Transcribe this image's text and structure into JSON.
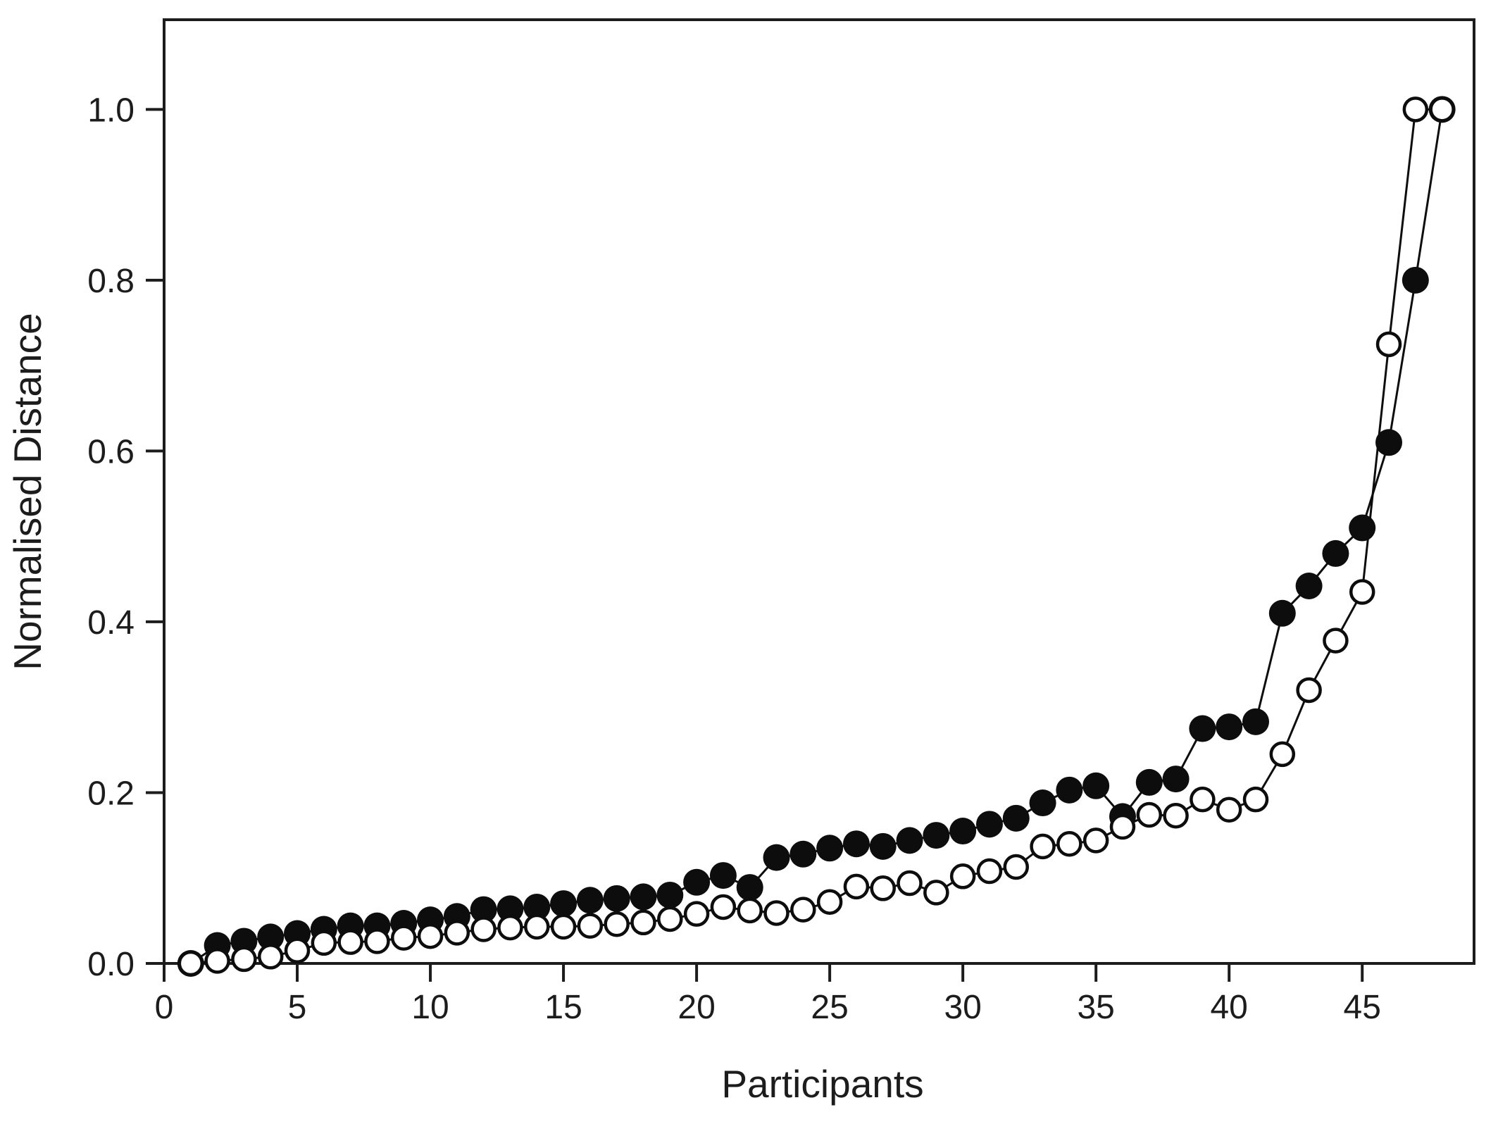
{
  "figure": {
    "background_color": "#ffffff",
    "ink_color": "#1c1c1c"
  },
  "chart_data": {
    "type": "line",
    "title": "",
    "xlabel": "Participants",
    "ylabel": "Normalised Distance",
    "grid": false,
    "legend": "none",
    "frame": true,
    "xlim": [
      0,
      49.2
    ],
    "ylim": [
      0,
      1.105
    ],
    "x_ticks": [
      0,
      5,
      10,
      15,
      20,
      25,
      30,
      35,
      40,
      45
    ],
    "y_ticks": [
      "0.0",
      "0.2",
      "0.4",
      "0.6",
      "0.8",
      "1.0"
    ],
    "x": [
      1,
      2,
      3,
      4,
      5,
      6,
      7,
      8,
      9,
      10,
      11,
      12,
      13,
      14,
      15,
      16,
      17,
      18,
      19,
      20,
      21,
      22,
      23,
      24,
      25,
      26,
      27,
      28,
      29,
      30,
      31,
      32,
      33,
      34,
      35,
      36,
      37,
      38,
      39,
      40,
      41,
      42,
      43,
      44,
      45,
      46,
      47,
      48
    ],
    "series": [
      {
        "name": "filled-circles",
        "marker": "filled-circle",
        "line_style": "solid",
        "color": "#0d0d0d",
        "values": [
          0.0,
          0.021,
          0.026,
          0.031,
          0.035,
          0.04,
          0.044,
          0.044,
          0.047,
          0.051,
          0.055,
          0.063,
          0.064,
          0.066,
          0.07,
          0.074,
          0.076,
          0.078,
          0.08,
          0.095,
          0.103,
          0.089,
          0.124,
          0.128,
          0.135,
          0.14,
          0.137,
          0.144,
          0.15,
          0.155,
          0.163,
          0.17,
          0.188,
          0.203,
          0.208,
          0.172,
          0.212,
          0.216,
          0.275,
          0.277,
          0.283,
          0.41,
          0.442,
          0.48,
          0.51,
          0.61,
          0.8,
          1.0
        ]
      },
      {
        "name": "open-circles",
        "marker": "open-circle",
        "line_style": "solid",
        "color": "#0d0d0d",
        "fill": "#ffffff",
        "values": [
          0.0,
          0.003,
          0.005,
          0.008,
          0.015,
          0.024,
          0.025,
          0.026,
          0.03,
          0.032,
          0.036,
          0.04,
          0.042,
          0.043,
          0.043,
          0.044,
          0.046,
          0.048,
          0.052,
          0.058,
          0.066,
          0.062,
          0.059,
          0.063,
          0.072,
          0.09,
          0.088,
          0.094,
          0.083,
          0.102,
          0.108,
          0.113,
          0.137,
          0.14,
          0.144,
          0.16,
          0.174,
          0.173,
          0.192,
          0.18,
          0.192,
          0.245,
          0.32,
          0.378,
          0.435,
          0.725,
          1.0,
          1.0
        ]
      }
    ]
  }
}
